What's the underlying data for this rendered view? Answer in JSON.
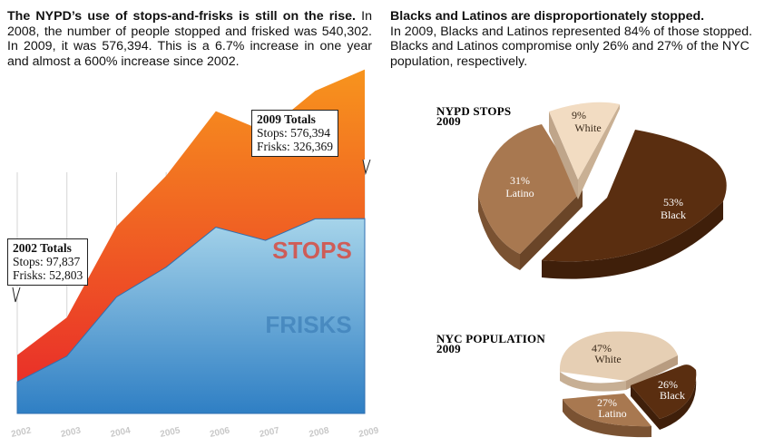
{
  "left_text": {
    "lead": "The NYPD’s use of stops-and-frisks is still on the rise.",
    "body": " In 2008, the number of people stopped and frisked was 540,302. In 2009, it was 576,394. This is a 6.7% increase in one year and almost a 600% increase since 2002."
  },
  "right_text": {
    "lead": "Blacks and Latinos are disproportionately stopped.",
    "body": "In 2009, Blacks and Latinos represented 84% of those stopped. Blacks and Latinos compromise only 26% and 27% of the NYC population, respectively."
  },
  "callout_2009": {
    "title": "2009 Totals",
    "line1": "Stops: 576,394",
    "line2": "Frisks: 326,369"
  },
  "callout_2002": {
    "title": "2002 Totals",
    "line1": "Stops: 97,837",
    "line2": "Frisks: 52,803"
  },
  "colors": {
    "stops_top": "#f7941d",
    "stops_bottom": "#e8262a",
    "frisks_top": "#a6d4ea",
    "frisks_bottom": "#2f7fc4",
    "black": "#5a2e10",
    "latino": "#a87850",
    "white": "#f2dcc2",
    "white_pop": "#e6cfb4"
  },
  "chart_data": [
    {
      "type": "area",
      "title": "",
      "x": [
        "2002",
        "2003",
        "2004",
        "2005",
        "2006",
        "2007",
        "2008",
        "2009"
      ],
      "series": [
        {
          "name": "STOPS",
          "values": [
            97837,
            160851,
            313523,
            398191,
            506491,
            472096,
            540302,
            576394
          ]
        },
        {
          "name": "FRISKS",
          "values": [
            52803,
            96000,
            195000,
            245000,
            312000,
            290000,
            326000,
            326369
          ]
        }
      ],
      "ylim": [
        0,
        600000
      ]
    },
    {
      "type": "pie",
      "title": "NYPD STOPS",
      "subtitle": "2009",
      "slices": [
        {
          "label": "Black",
          "value": 53,
          "pct": "53%"
        },
        {
          "label": "Latino",
          "value": 31,
          "pct": "31%"
        },
        {
          "label": "White",
          "value": 9,
          "pct": "9%"
        }
      ]
    },
    {
      "type": "pie",
      "title": "NYC POPULATION",
      "subtitle": "2009",
      "slices": [
        {
          "label": "Black",
          "value": 26,
          "pct": "26%"
        },
        {
          "label": "Latino",
          "value": 27,
          "pct": "27%"
        },
        {
          "label": "White",
          "value": 47,
          "pct": "47%"
        }
      ]
    }
  ]
}
